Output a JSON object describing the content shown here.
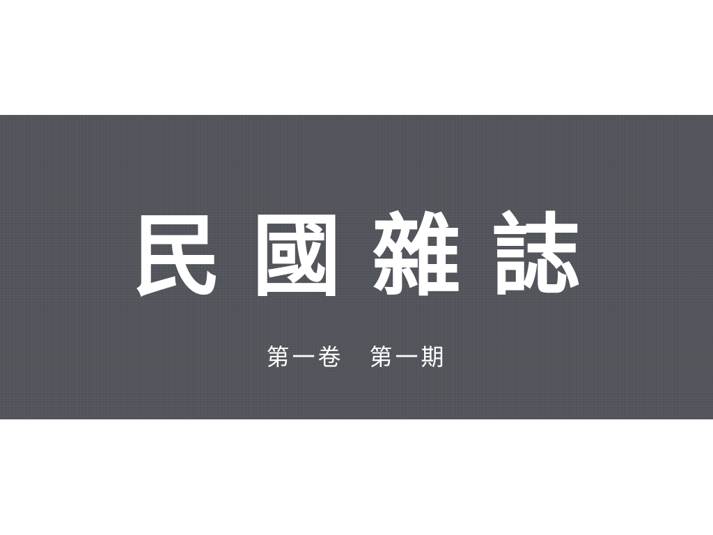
{
  "background_color": "#ffffff",
  "banner": {
    "color": "#54565d",
    "texture": "linen"
  },
  "title": {
    "characters": [
      "民",
      "國",
      "雜",
      "誌"
    ],
    "color": "#ffffff"
  },
  "subtitle": {
    "text": "第一卷　第一期",
    "color": "#ffffff"
  }
}
